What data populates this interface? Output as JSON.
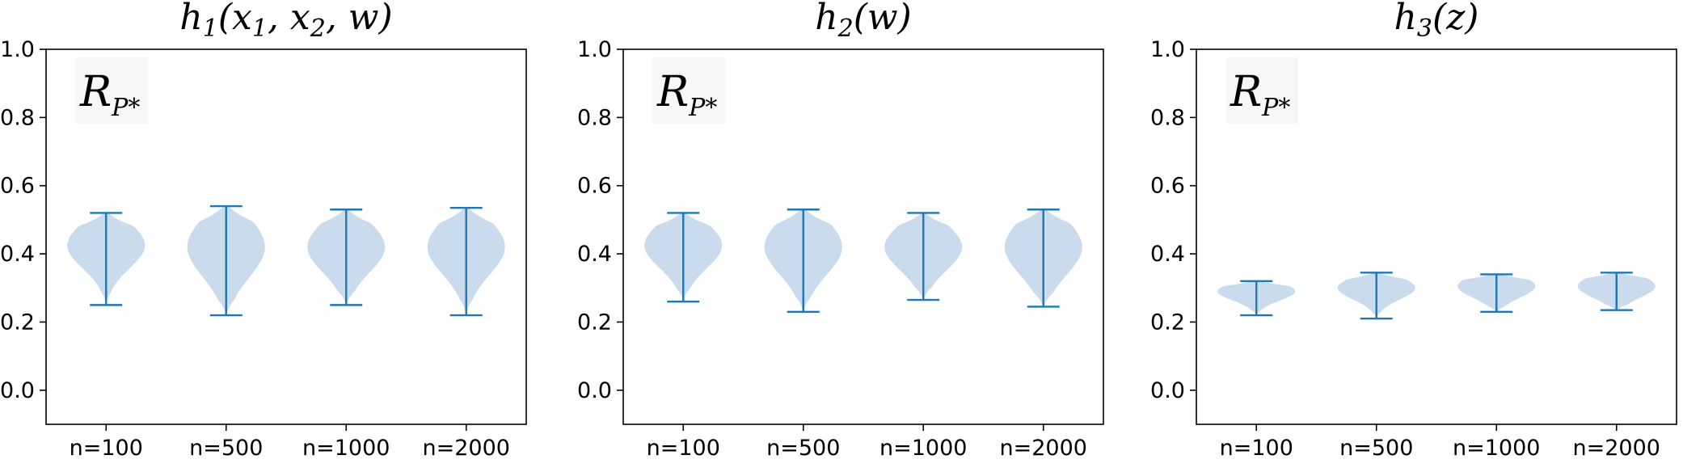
{
  "chart_data": [
    {
      "type": "violin",
      "title": "h1(x1, x2, w)",
      "title_parts": {
        "base": "h",
        "sub": "1",
        "args": [
          "x",
          "1",
          "x",
          "2",
          "w"
        ]
      },
      "annotation": {
        "base": "R",
        "sub": "P*"
      },
      "categories": [
        "n=100",
        "n=500",
        "n=1000",
        "n=2000"
      ],
      "ylim": [
        -0.1,
        1.0
      ],
      "yticks": [
        "0.0",
        "0.2",
        "0.4",
        "0.6",
        "0.8",
        "1.0"
      ],
      "violins": [
        {
          "min": 0.25,
          "max": 0.52,
          "center": 0.425,
          "spread": 0.1
        },
        {
          "min": 0.22,
          "max": 0.54,
          "center": 0.42,
          "spread": 0.13
        },
        {
          "min": 0.25,
          "max": 0.53,
          "center": 0.42,
          "spread": 0.11
        },
        {
          "min": 0.22,
          "max": 0.535,
          "center": 0.42,
          "spread": 0.12
        }
      ],
      "color": "#1f77b4",
      "fill": "#c6d9ec",
      "grid": false
    },
    {
      "type": "violin",
      "title": "h2(w)",
      "title_parts": {
        "base": "h",
        "sub": "2",
        "args": [
          "w"
        ]
      },
      "annotation": {
        "base": "R",
        "sub": "P*"
      },
      "categories": [
        "n=100",
        "n=500",
        "n=1000",
        "n=2000"
      ],
      "ylim": [
        -0.1,
        1.0
      ],
      "yticks": [
        "0.0",
        "0.2",
        "0.4",
        "0.6",
        "0.8",
        "1.0"
      ],
      "violins": [
        {
          "min": 0.26,
          "max": 0.52,
          "center": 0.425,
          "spread": 0.1
        },
        {
          "min": 0.23,
          "max": 0.53,
          "center": 0.42,
          "spread": 0.12
        },
        {
          "min": 0.265,
          "max": 0.52,
          "center": 0.42,
          "spread": 0.1
        },
        {
          "min": 0.245,
          "max": 0.53,
          "center": 0.42,
          "spread": 0.12
        }
      ],
      "color": "#1f77b4",
      "fill": "#c6d9ec",
      "grid": false
    },
    {
      "type": "violin",
      "title": "h3(z)",
      "title_parts": {
        "base": "h",
        "sub": "3",
        "args": [
          "z"
        ]
      },
      "annotation": {
        "base": "R",
        "sub": "P*"
      },
      "categories": [
        "n=100",
        "n=500",
        "n=1000",
        "n=2000"
      ],
      "ylim": [
        -0.1,
        1.0
      ],
      "yticks": [
        "0.0",
        "0.2",
        "0.4",
        "0.6",
        "0.8",
        "1.0"
      ],
      "violins": [
        {
          "min": 0.22,
          "max": 0.32,
          "center": 0.29,
          "spread": 0.04
        },
        {
          "min": 0.21,
          "max": 0.345,
          "center": 0.3,
          "spread": 0.05
        },
        {
          "min": 0.23,
          "max": 0.34,
          "center": 0.305,
          "spread": 0.05
        },
        {
          "min": 0.235,
          "max": 0.345,
          "center": 0.305,
          "spread": 0.05
        }
      ],
      "color": "#1f77b4",
      "fill": "#c6d9ec",
      "grid": false
    }
  ]
}
